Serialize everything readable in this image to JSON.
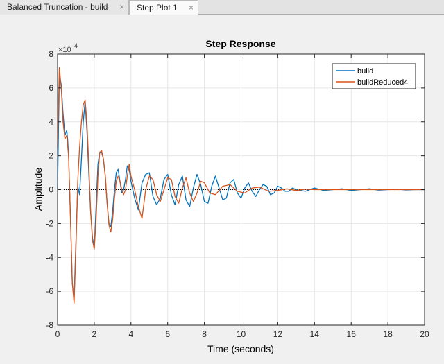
{
  "tabs": [
    {
      "label": "Balanced Truncation - build",
      "close": "×"
    },
    {
      "label": "Step Plot 1",
      "close": "×"
    }
  ],
  "colors": {
    "series_build": "#0072bd",
    "series_reduced": "#d95319",
    "grid": "#e6e6e6",
    "axis": "#262626"
  },
  "chart_data": {
    "type": "line",
    "title": "Step Response",
    "xlabel": "Time (seconds)",
    "ylabel": "Amplitude",
    "y_exponent_label": "×10",
    "y_exponent_power": "-4",
    "xlim": [
      0,
      20
    ],
    "ylim": [
      -8,
      8
    ],
    "xticks": [
      0,
      2,
      4,
      6,
      8,
      10,
      12,
      14,
      16,
      18,
      20
    ],
    "yticks": [
      -8,
      -6,
      -4,
      -2,
      0,
      2,
      4,
      6,
      8
    ],
    "grid": true,
    "legend_position": "top-right",
    "zero_line": "dotted black at y=0",
    "series": [
      {
        "name": "build",
        "color": "#0072bd",
        "x": [
          0,
          0.1,
          0.2,
          0.3,
          0.4,
          0.5,
          0.55,
          0.6,
          0.7,
          0.8,
          0.9,
          1.0,
          1.1,
          1.2,
          1.3,
          1.4,
          1.5,
          1.6,
          1.7,
          1.8,
          1.9,
          2.0,
          2.1,
          2.2,
          2.3,
          2.4,
          2.5,
          2.6,
          2.7,
          2.8,
          2.9,
          3.0,
          3.1,
          3.2,
          3.3,
          3.4,
          3.5,
          3.6,
          3.7,
          3.8,
          3.9,
          4.0,
          4.2,
          4.4,
          4.6,
          4.8,
          5.0,
          5.2,
          5.4,
          5.6,
          5.8,
          6.0,
          6.2,
          6.4,
          6.6,
          6.8,
          7.0,
          7.2,
          7.4,
          7.6,
          7.8,
          8.0,
          8.2,
          8.4,
          8.6,
          8.8,
          9.0,
          9.2,
          9.4,
          9.6,
          9.8,
          10.0,
          10.2,
          10.4,
          10.6,
          10.8,
          11.0,
          11.2,
          11.4,
          11.6,
          11.8,
          12.0,
          12.2,
          12.4,
          12.6,
          12.8,
          13.0,
          13.5,
          14.0,
          14.5,
          15.0,
          15.5,
          16.0,
          16.5,
          17.0,
          17.5,
          18.0,
          18.5,
          19.0,
          19.5,
          20.0
        ],
        "y": [
          0,
          6.8,
          6.2,
          4.5,
          3.2,
          3.5,
          3.0,
          2.0,
          -1.5,
          -5.5,
          -6.5,
          -3.0,
          0.2,
          -0.3,
          1.8,
          4.0,
          5.2,
          3.5,
          1.0,
          -1.3,
          -2.8,
          -3.5,
          -1.0,
          1.5,
          2.2,
          2.2,
          1.8,
          0.8,
          -0.8,
          -2.0,
          -2.2,
          -1.3,
          0.0,
          1.0,
          1.2,
          0.5,
          -0.2,
          0.0,
          0.6,
          1.4,
          1.2,
          0.5,
          -0.5,
          -1.2,
          0.4,
          0.9,
          1.0,
          -0.4,
          -0.9,
          -0.5,
          0.6,
          0.9,
          -0.3,
          -0.9,
          0.3,
          0.8,
          -0.6,
          -1.0,
          0.1,
          0.9,
          0.3,
          -0.7,
          -0.8,
          0.2,
          0.8,
          0.1,
          -0.6,
          -0.5,
          0.4,
          0.6,
          -0.2,
          -0.5,
          0.1,
          0.4,
          -0.1,
          -0.4,
          0.0,
          0.3,
          0.2,
          -0.3,
          -0.2,
          0.2,
          0.1,
          -0.1,
          -0.1,
          0.1,
          0.0,
          -0.1,
          0.1,
          -0.05,
          0.0,
          0.05,
          -0.05,
          0.0,
          0.05,
          -0.03,
          0.0,
          0.03,
          -0.02,
          0.0,
          0.0
        ]
      },
      {
        "name": "buildReduced4",
        "color": "#d95319",
        "x": [
          0,
          0.1,
          0.2,
          0.3,
          0.4,
          0.5,
          0.6,
          0.7,
          0.8,
          0.9,
          1.0,
          1.1,
          1.2,
          1.3,
          1.4,
          1.5,
          1.6,
          1.7,
          1.8,
          1.9,
          2.0,
          2.1,
          2.2,
          2.3,
          2.4,
          2.5,
          2.6,
          2.7,
          2.8,
          2.9,
          3.0,
          3.1,
          3.2,
          3.3,
          3.4,
          3.5,
          3.6,
          3.7,
          3.8,
          3.9,
          4.0,
          4.2,
          4.4,
          4.6,
          4.8,
          5.0,
          5.2,
          5.4,
          5.6,
          5.8,
          6.0,
          6.2,
          6.4,
          6.6,
          6.8,
          7.0,
          7.2,
          7.4,
          7.6,
          7.8,
          8.0,
          8.3,
          8.6,
          9.0,
          9.4,
          9.8,
          10.2,
          10.6,
          11.0,
          11.5,
          12.0,
          12.5,
          13.0,
          13.5,
          14.0,
          15.0,
          16.0,
          17.0,
          18.0,
          19.0,
          20.0
        ],
        "y": [
          2.5,
          7.2,
          6.0,
          4.0,
          3.0,
          3.2,
          2.0,
          -1.5,
          -5.5,
          -6.7,
          -3.5,
          0.5,
          2.5,
          4.0,
          5.0,
          5.3,
          4.0,
          1.5,
          -1.2,
          -3.0,
          -3.5,
          -1.8,
          0.8,
          2.2,
          2.3,
          1.8,
          0.8,
          -0.8,
          -2.1,
          -2.5,
          -1.8,
          -0.5,
          0.5,
          0.8,
          0.5,
          0.0,
          -0.3,
          0.0,
          0.8,
          1.5,
          0.8,
          0.0,
          -1.0,
          -1.7,
          0.0,
          0.8,
          0.6,
          -0.3,
          -0.7,
          0.0,
          0.7,
          0.6,
          -0.4,
          -0.8,
          0.1,
          0.7,
          -0.2,
          -0.7,
          -0.2,
          0.5,
          0.4,
          -0.2,
          -0.3,
          0.2,
          0.3,
          -0.1,
          -0.2,
          0.1,
          0.15,
          -0.1,
          -0.05,
          0.05,
          -0.05,
          0.03,
          0.0,
          0.0,
          0.0,
          0.0,
          0.0,
          0.0,
          0.0
        ]
      }
    ]
  }
}
